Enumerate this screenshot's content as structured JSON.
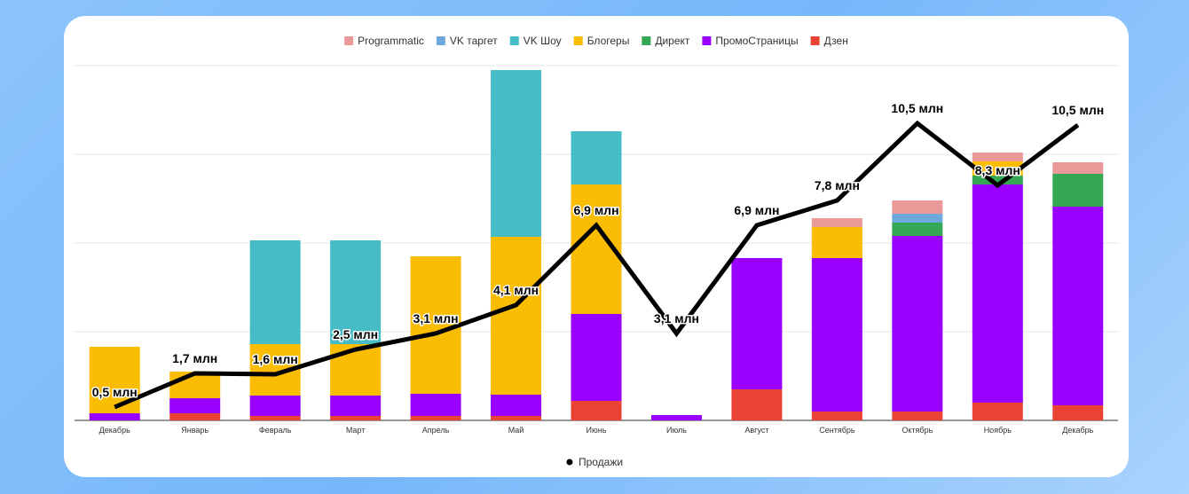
{
  "chart_data": {
    "type": "bar",
    "stacked": true,
    "categories": [
      "Декабрь",
      "Январь",
      "Февраль",
      "Март",
      "Апрель",
      "Май",
      "Июнь",
      "Июль",
      "Август",
      "Сентябрь",
      "Октябрь",
      "Ноябрь",
      "Декабрь"
    ],
    "ylim": [
      0,
      400
    ],
    "grid": true,
    "legend_position": "top",
    "series": [
      {
        "name": "Дзен",
        "color": "#ea4335",
        "values": [
          0,
          8,
          5,
          5,
          5,
          5,
          22,
          0,
          35,
          10,
          10,
          20,
          17
        ]
      },
      {
        "name": "ПромоСтраницы",
        "color": "#9900ff",
        "values": [
          8,
          17,
          23,
          23,
          25,
          24,
          98,
          6,
          148,
          173,
          198,
          246,
          224
        ]
      },
      {
        "name": "Директ",
        "color": "#34a853",
        "values": [
          0,
          0,
          0,
          0,
          0,
          0,
          0,
          0,
          0,
          0,
          15,
          10,
          37
        ]
      },
      {
        "name": "Блогеры",
        "color": "#fbbc04",
        "values": [
          75,
          30,
          58,
          58,
          155,
          178,
          146,
          0,
          0,
          35,
          0,
          16,
          0
        ]
      },
      {
        "name": "VK Шоу",
        "color": "#46bdc6",
        "values": [
          0,
          0,
          117,
          117,
          0,
          188,
          60,
          0,
          0,
          0,
          0,
          0,
          0
        ]
      },
      {
        "name": "VK таргет",
        "color": "#6fa8dc",
        "values": [
          0,
          0,
          0,
          0,
          0,
          0,
          0,
          0,
          0,
          0,
          10,
          0,
          0
        ]
      },
      {
        "name": "Programmatic",
        "color": "#ea9999",
        "values": [
          0,
          0,
          0,
          0,
          0,
          0,
          0,
          0,
          0,
          10,
          15,
          10,
          13
        ]
      }
    ],
    "legend_order": [
      "Programmatic",
      "VK таргет",
      "VK Шоу",
      "Блогеры",
      "Директ",
      "ПромоСтраницы",
      "Дзен"
    ],
    "line_series": {
      "name": "Продажи",
      "color": "#000000",
      "values": [
        15,
        53,
        52,
        80,
        98,
        130,
        220,
        98,
        220,
        248,
        335,
        265,
        333
      ],
      "labels": [
        "0,5 млн",
        "1,7 млн",
        "1,6 млн",
        "2,5 млн",
        "3,1 млн",
        "4,1 млн",
        "6,9 млн",
        "3,1 млн",
        "6,9 млн",
        "7,8 млн",
        "10,5 млн",
        "8,3 млн",
        "10,5 млн"
      ]
    }
  }
}
